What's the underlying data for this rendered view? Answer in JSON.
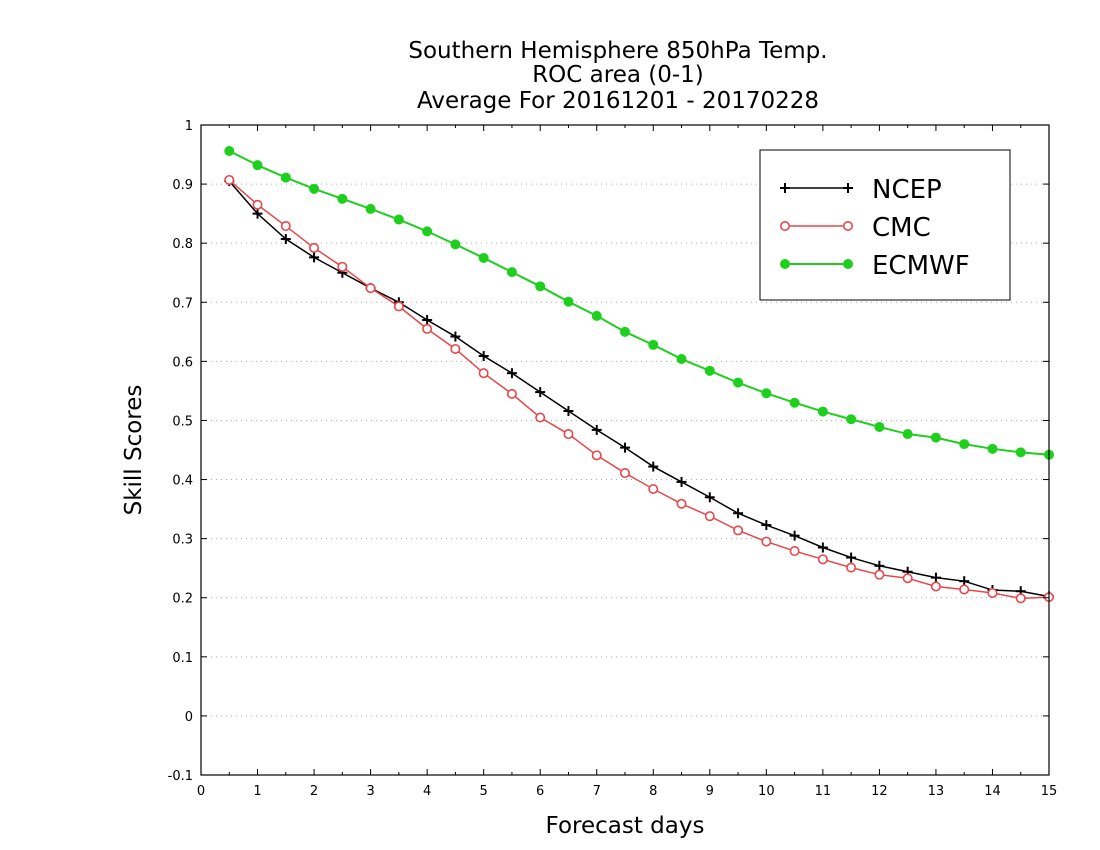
{
  "chart_data": {
    "type": "line",
    "title": [
      "Southern Hemisphere 850hPa Temp.",
      "ROC area (0-1)",
      "Average For 20161201 - 20170228"
    ],
    "xlabel": "Forecast days",
    "ylabel": "Skill Scores",
    "xlim": [
      0,
      15
    ],
    "ylim": [
      -0.1,
      1
    ],
    "xticks": [
      "0",
      "1",
      "2",
      "3",
      "4",
      "5",
      "6",
      "7",
      "8",
      "9",
      "10",
      "11",
      "12",
      "13",
      "14",
      "15"
    ],
    "yticks": [
      "-0.1",
      "0",
      "0.1",
      "0.2",
      "0.3",
      "0.4",
      "0.5",
      "0.6",
      "0.7",
      "0.8",
      "0.9",
      "1"
    ],
    "ytick_values": [
      -0.1,
      0,
      0.1,
      0.2,
      0.3,
      0.4,
      0.5,
      0.6,
      0.7,
      0.8,
      0.9,
      1
    ],
    "grid": "horizontal dotted",
    "legend_position": "top-right",
    "x": [
      0.5,
      1,
      1.5,
      2,
      2.5,
      3,
      3.5,
      4,
      4.5,
      5,
      5.5,
      6,
      6.5,
      7,
      7.5,
      8,
      8.5,
      9,
      9.5,
      10,
      10.5,
      11,
      11.5,
      12,
      12.5,
      13,
      13.5,
      14,
      14.5,
      15
    ],
    "series": [
      {
        "name": "NCEP",
        "color": "#000000",
        "marker": "plus",
        "values": [
          0.905,
          0.85,
          0.807,
          0.776,
          0.75,
          0.724,
          0.7,
          0.67,
          0.642,
          0.609,
          0.58,
          0.548,
          0.516,
          0.484,
          0.454,
          0.422,
          0.396,
          0.37,
          0.343,
          0.323,
          0.305,
          0.285,
          0.268,
          0.254,
          0.244,
          0.234,
          0.228,
          0.213,
          0.211,
          0.202
        ]
      },
      {
        "name": "CMC",
        "color": "#e8474a",
        "marker": "open-circle",
        "values": [
          0.907,
          0.865,
          0.829,
          0.792,
          0.76,
          0.724,
          0.693,
          0.655,
          0.621,
          0.58,
          0.545,
          0.505,
          0.477,
          0.441,
          0.411,
          0.384,
          0.359,
          0.338,
          0.314,
          0.295,
          0.279,
          0.265,
          0.251,
          0.239,
          0.233,
          0.219,
          0.214,
          0.208,
          0.199,
          0.201
        ]
      },
      {
        "name": "ECMWF",
        "color": "#1ecf1e",
        "marker": "filled-circle",
        "values": [
          0.956,
          0.932,
          0.911,
          0.892,
          0.875,
          0.858,
          0.84,
          0.82,
          0.798,
          0.775,
          0.751,
          0.727,
          0.701,
          0.677,
          0.65,
          0.628,
          0.604,
          0.584,
          0.564,
          0.546,
          0.53,
          0.515,
          0.502,
          0.489,
          0.477,
          0.471,
          0.46,
          0.452,
          0.446,
          0.442
        ]
      }
    ]
  }
}
